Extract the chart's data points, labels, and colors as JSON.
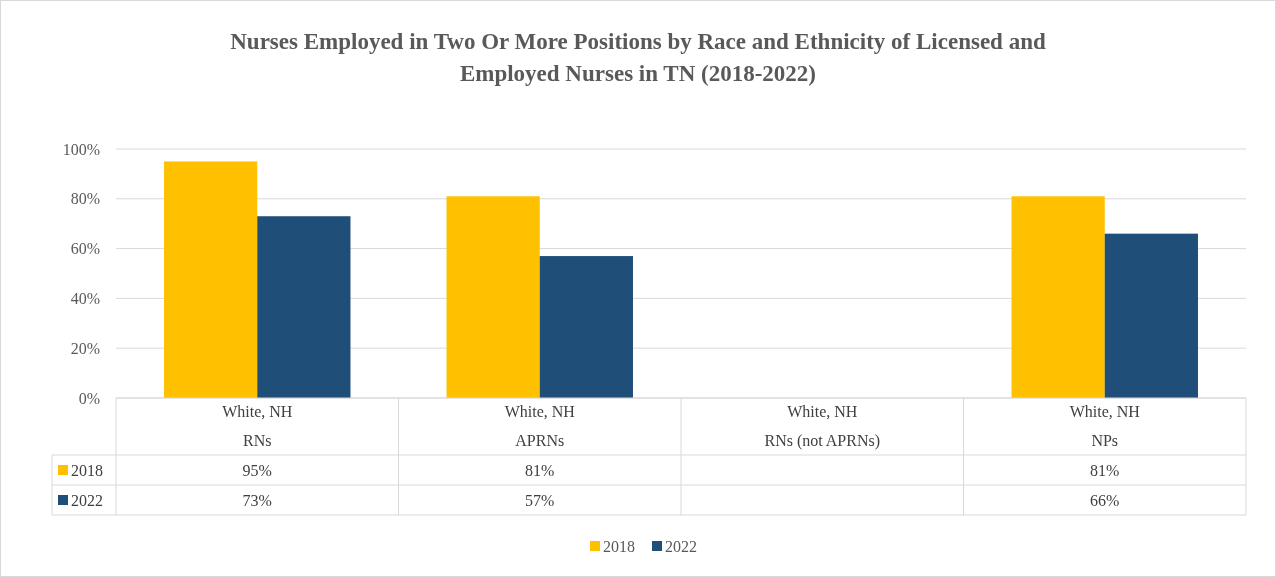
{
  "chart_data": {
    "type": "bar",
    "title": "Nurses Employed in Two Or More Positions by Race and Ethnicity of Licensed and Employed Nurses in TN (2018-2022)",
    "categories": [
      "White, NH\nRNs",
      "White, NH\nAPRNs",
      "White, NH\nRNs (not APRNs)",
      "White, NH\nNPs"
    ],
    "series": [
      {
        "name": "2018",
        "color": "#ffc000",
        "values": [
          95,
          81,
          null,
          81
        ],
        "value_labels": [
          "95%",
          "81%",
          null,
          "81%"
        ]
      },
      {
        "name": "2022",
        "color": "#1f4e79",
        "values": [
          73,
          57,
          null,
          66
        ],
        "value_labels": [
          "73%",
          "57%",
          null,
          "66%"
        ]
      }
    ],
    "ylim": [
      0,
      100
    ],
    "yticks": [
      {
        "value": 0,
        "label": "0%"
      },
      {
        "value": 20,
        "label": "20%"
      },
      {
        "value": 40,
        "label": "40%"
      },
      {
        "value": 60,
        "label": "60%"
      },
      {
        "value": 80,
        "label": "80%"
      },
      {
        "value": 100,
        "label": "100%"
      }
    ],
    "grid": "y",
    "legend": "bottom"
  }
}
